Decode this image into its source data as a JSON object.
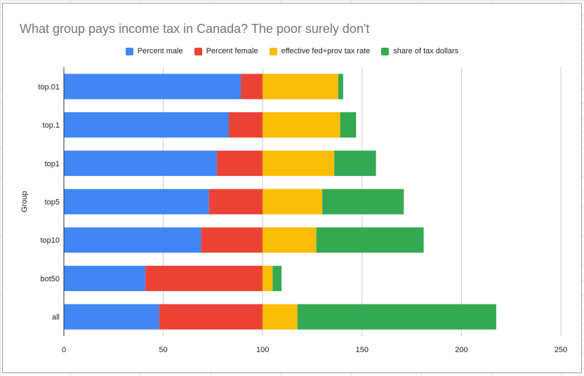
{
  "chart_data": {
    "type": "bar",
    "orientation": "horizontal",
    "stacked": true,
    "title": "What group pays income tax in Canada?  The poor surely don't",
    "ylabel": "Group",
    "xlabel": "",
    "categories": [
      "top.01",
      "top.1",
      "top1",
      "top5",
      "top10",
      "bot50",
      "all"
    ],
    "series": [
      {
        "name": "Percent male",
        "color": "#4285f4",
        "values": [
          89,
          83,
          77,
          73,
          69,
          41,
          48
        ]
      },
      {
        "name": "Percent female",
        "color": "#ea4335",
        "values": [
          11,
          17,
          23,
          27,
          31,
          59,
          52
        ]
      },
      {
        "name": "effective fed+prov tax rate",
        "color": "#fbbc04",
        "values": [
          38,
          39,
          36,
          30,
          27,
          5,
          17.5
        ]
      },
      {
        "name": "share of tax dollars",
        "color": "#34a853",
        "values": [
          2.5,
          8,
          21,
          41,
          54,
          4.5,
          100
        ]
      }
    ],
    "xlim": [
      0,
      250
    ],
    "xticks": [
      0,
      50,
      100,
      150,
      200,
      250
    ],
    "grid": true,
    "legend_position": "top"
  }
}
